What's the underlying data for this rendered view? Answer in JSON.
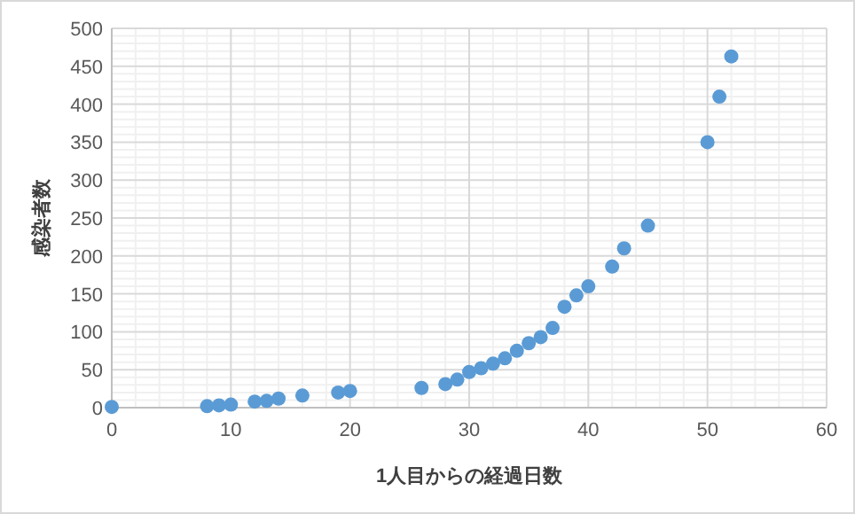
{
  "chart_data": {
    "type": "scatter",
    "xlabel": "1人目からの経過日数",
    "ylabel": "感染者数",
    "x": [
      0,
      8,
      9,
      10,
      12,
      13,
      14,
      16,
      19,
      20,
      26,
      28,
      29,
      30,
      31,
      32,
      33,
      34,
      35,
      36,
      37,
      38,
      39,
      40,
      42,
      43,
      45,
      50,
      51,
      52
    ],
    "series": [
      {
        "color": "#5b9bd5",
        "values": [
          1,
          2,
          3,
          4,
          8,
          9,
          12,
          16,
          20,
          22,
          26,
          31,
          37,
          47,
          52,
          58,
          65,
          75,
          85,
          93,
          105,
          133,
          148,
          160,
          186,
          210,
          240,
          350,
          410,
          463
        ]
      }
    ],
    "xlim": [
      0,
      60
    ],
    "xticks": [
      0,
      10,
      20,
      30,
      40,
      50,
      60
    ],
    "ylim": [
      0,
      500
    ],
    "yticks": [
      0,
      50,
      100,
      150,
      200,
      250,
      300,
      350,
      400,
      450,
      500
    ],
    "grid": true,
    "marker": "circle"
  }
}
